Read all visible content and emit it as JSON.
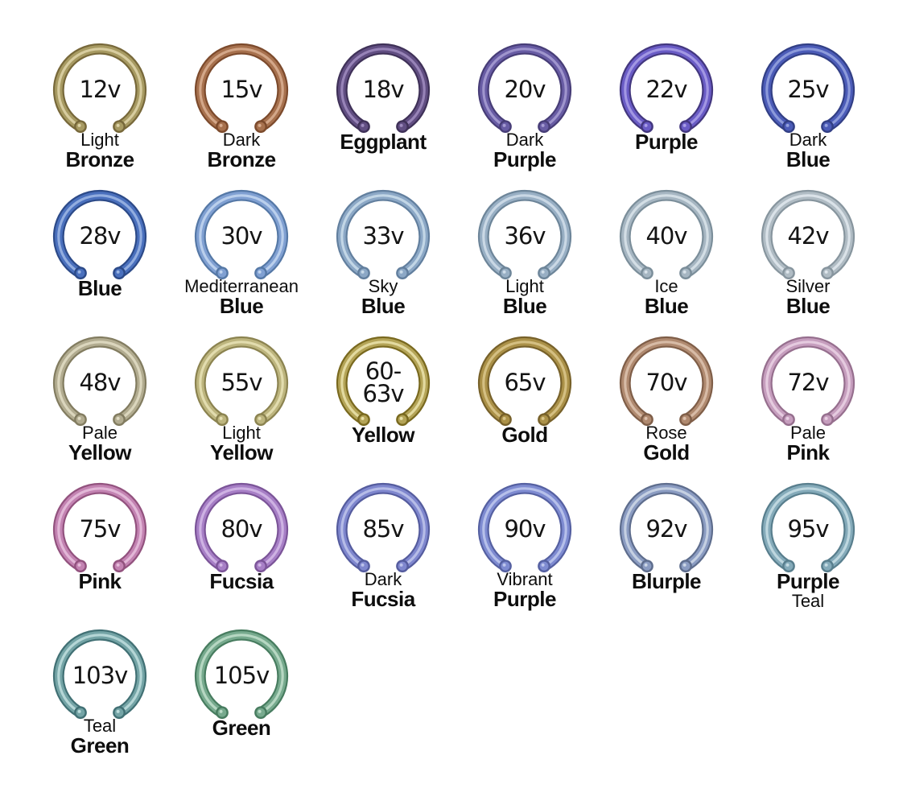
{
  "page": {
    "background": "#ffffff",
    "description_data": "Anodized titanium captive ring voltage-to-color reference chart"
  },
  "rings": [
    {
      "voltage_lines": [
        "12v"
      ],
      "labels": [
        {
          "text": "Light",
          "bold": false
        },
        {
          "text": "Bronze",
          "bold": true
        }
      ],
      "colors": {
        "dark": "#77683a",
        "main": "#a79a62",
        "light": "#ddd2a6"
      }
    },
    {
      "voltage_lines": [
        "15v"
      ],
      "labels": [
        {
          "text": "Dark",
          "bold": false
        },
        {
          "text": "Bronze",
          "bold": true
        }
      ],
      "colors": {
        "dark": "#7c4a2c",
        "main": "#a7714e",
        "light": "#d8ad90"
      }
    },
    {
      "voltage_lines": [
        "18v"
      ],
      "labels": [
        {
          "text": "Eggplant",
          "bold": true
        }
      ],
      "colors": {
        "dark": "#3f3158",
        "main": "#614e82",
        "light": "#9d8abd"
      }
    },
    {
      "voltage_lines": [
        "20v"
      ],
      "labels": [
        {
          "text": "Dark",
          "bold": false
        },
        {
          "text": "Purple",
          "bold": true
        }
      ],
      "colors": {
        "dark": "#473d77",
        "main": "#685ca4",
        "light": "#a59bd2"
      }
    },
    {
      "voltage_lines": [
        "22v"
      ],
      "labels": [
        {
          "text": "Purple",
          "bold": true
        }
      ],
      "colors": {
        "dark": "#43377f",
        "main": "#6a5cc6",
        "light": "#a89de6"
      }
    },
    {
      "voltage_lines": [
        "25v"
      ],
      "labels": [
        {
          "text": "Dark",
          "bold": false
        },
        {
          "text": "Blue",
          "bold": true
        }
      ],
      "colors": {
        "dark": "#323f85",
        "main": "#4c5cb8",
        "light": "#93a1de"
      }
    },
    {
      "voltage_lines": [
        "28v"
      ],
      "labels": [
        {
          "text": "Blue",
          "bold": true
        }
      ],
      "colors": {
        "dark": "#2c4a88",
        "main": "#4a70bd",
        "light": "#9ab4e2"
      }
    },
    {
      "voltage_lines": [
        "30v"
      ],
      "labels": [
        {
          "text": "Mediterranean",
          "bold": false
        },
        {
          "text": "Blue",
          "bold": true
        }
      ],
      "colors": {
        "dark": "#5578a6",
        "main": "#80a0d2",
        "light": "#c0d4ee"
      }
    },
    {
      "voltage_lines": [
        "33v"
      ],
      "labels": [
        {
          "text": "Sky",
          "bold": false
        },
        {
          "text": "Blue",
          "bold": true
        }
      ],
      "colors": {
        "dark": "#627f9e",
        "main": "#8ca8c6",
        "light": "#c8dae9"
      }
    },
    {
      "voltage_lines": [
        "36v"
      ],
      "labels": [
        {
          "text": "Light",
          "bold": false
        },
        {
          "text": "Blue",
          "bold": true
        }
      ],
      "colors": {
        "dark": "#6d8599",
        "main": "#98afc4",
        "light": "#cfdde9"
      }
    },
    {
      "voltage_lines": [
        "40v"
      ],
      "labels": [
        {
          "text": "Ice",
          "bold": false
        },
        {
          "text": "Blue",
          "bold": true
        }
      ],
      "colors": {
        "dark": "#7b8e9a",
        "main": "#a6b6c2",
        "light": "#d8e2e9"
      }
    },
    {
      "voltage_lines": [
        "42v"
      ],
      "labels": [
        {
          "text": "Silver",
          "bold": false
        },
        {
          "text": "Blue",
          "bold": true
        }
      ],
      "colors": {
        "dark": "#87959e",
        "main": "#b0bcc4",
        "light": "#dfe6ec"
      }
    },
    {
      "voltage_lines": [
        "48v"
      ],
      "labels": [
        {
          "text": "Pale",
          "bold": false
        },
        {
          "text": "Yellow",
          "bold": true
        }
      ],
      "colors": {
        "dark": "#827c60",
        "main": "#b2ac90",
        "light": "#dfdac2"
      }
    },
    {
      "voltage_lines": [
        "55v"
      ],
      "labels": [
        {
          "text": "Light",
          "bold": false
        },
        {
          "text": "Yellow",
          "bold": true
        }
      ],
      "colors": {
        "dark": "#8b8350",
        "main": "#bdb57e",
        "light": "#e6e0b4"
      }
    },
    {
      "voltage_lines": [
        "60-",
        "63v"
      ],
      "labels": [
        {
          "text": "Yellow",
          "bold": true
        }
      ],
      "colors": {
        "dark": "#79691f",
        "main": "#b4a457",
        "light": "#e8e0a8"
      }
    },
    {
      "voltage_lines": [
        "65v"
      ],
      "labels": [
        {
          "text": "Gold",
          "bold": true
        }
      ],
      "colors": {
        "dark": "#77612a",
        "main": "#ab9148",
        "light": "#d8c488"
      }
    },
    {
      "voltage_lines": [
        "70v"
      ],
      "labels": [
        {
          "text": "Rose",
          "bold": false
        },
        {
          "text": "Gold",
          "bold": true
        }
      ],
      "colors": {
        "dark": "#7f5e48",
        "main": "#b08a70",
        "light": "#dcc0ac"
      }
    },
    {
      "voltage_lines": [
        "72v"
      ],
      "labels": [
        {
          "text": "Pale",
          "bold": false
        },
        {
          "text": "Pink",
          "bold": true
        }
      ],
      "colors": {
        "dark": "#966f8e",
        "main": "#c69ebe",
        "light": "#e8cfe2"
      }
    },
    {
      "voltage_lines": [
        "75v"
      ],
      "labels": [
        {
          "text": "Pink",
          "bold": true
        }
      ],
      "colors": {
        "dark": "#92527e",
        "main": "#c383b2",
        "light": "#e6bcda"
      }
    },
    {
      "voltage_lines": [
        "80v"
      ],
      "labels": [
        {
          "text": "Fucsia",
          "bold": true
        }
      ],
      "colors": {
        "dark": "#7b5498",
        "main": "#a77fc6",
        "light": "#d3b8e6"
      }
    },
    {
      "voltage_lines": [
        "85v"
      ],
      "labels": [
        {
          "text": "Dark",
          "bold": false
        },
        {
          "text": "Fucsia",
          "bold": true
        }
      ],
      "colors": {
        "dark": "#555c9e",
        "main": "#7f87ce",
        "light": "#bcc2ea"
      }
    },
    {
      "voltage_lines": [
        "90v"
      ],
      "labels": [
        {
          "text": "Vibrant",
          "bold": false
        },
        {
          "text": "Purple",
          "bold": true
        }
      ],
      "colors": {
        "dark": "#5560a1",
        "main": "#7e8bd1",
        "light": "#bdc5ec"
      }
    },
    {
      "voltage_lines": [
        "92v"
      ],
      "labels": [
        {
          "text": "Blurple",
          "bold": true
        }
      ],
      "colors": {
        "dark": "#5e6d8d",
        "main": "#8b9cc2",
        "light": "#cbd6e6"
      }
    },
    {
      "voltage_lines": [
        "95v"
      ],
      "labels": [
        {
          "text": "Purple",
          "bold": true
        },
        {
          "text": "Teal",
          "bold": false
        }
      ],
      "colors": {
        "dark": "#587e8d",
        "main": "#85abba",
        "light": "#c4dbe3"
      }
    },
    {
      "voltage_lines": [
        "103v"
      ],
      "labels": [
        {
          "text": "Teal",
          "bold": false
        },
        {
          "text": "Green",
          "bold": true
        }
      ],
      "colors": {
        "dark": "#417074",
        "main": "#74a4a6",
        "light": "#bcdcdc"
      }
    },
    {
      "voltage_lines": [
        "105v"
      ],
      "labels": [
        {
          "text": "Green",
          "bold": true
        }
      ],
      "colors": {
        "dark": "#477c5f",
        "main": "#77aa8e",
        "light": "#bcdcc8"
      }
    }
  ],
  "chart_data": {
    "type": "table",
    "columns": [
      "anodizing_voltage",
      "color_name"
    ],
    "rows": [
      [
        "12v",
        "Light Bronze"
      ],
      [
        "15v",
        "Dark Bronze"
      ],
      [
        "18v",
        "Eggplant"
      ],
      [
        "20v",
        "Dark Purple"
      ],
      [
        "22v",
        "Purple"
      ],
      [
        "25v",
        "Dark Blue"
      ],
      [
        "28v",
        "Blue"
      ],
      [
        "30v",
        "Mediterranean Blue"
      ],
      [
        "33v",
        "Sky Blue"
      ],
      [
        "36v",
        "Light Blue"
      ],
      [
        "40v",
        "Ice Blue"
      ],
      [
        "42v",
        "Silver Blue"
      ],
      [
        "48v",
        "Pale Yellow"
      ],
      [
        "55v",
        "Light Yellow"
      ],
      [
        "60-63v",
        "Yellow"
      ],
      [
        "65v",
        "Gold"
      ],
      [
        "70v",
        "Rose Gold"
      ],
      [
        "72v",
        "Pale Pink"
      ],
      [
        "75v",
        "Pink"
      ],
      [
        "80v",
        "Fucsia"
      ],
      [
        "85v",
        "Dark Fucsia"
      ],
      [
        "90v",
        "Vibrant Purple"
      ],
      [
        "92v",
        "Blurple"
      ],
      [
        "95v",
        "Purple Teal"
      ],
      [
        "103v",
        "Teal Green"
      ],
      [
        "105v",
        "Green"
      ]
    ],
    "layout": {
      "grid_columns": 6,
      "grid_rows": 5,
      "last_row_items": 2
    }
  }
}
